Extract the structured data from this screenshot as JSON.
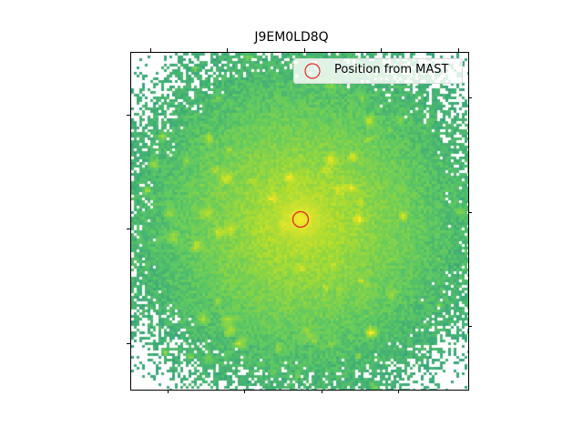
{
  "title": "J9EM0LD8Q",
  "legend": {
    "label": "Position from MAST",
    "marker_color": "#e8252a",
    "marker_icon": "circle-outline-icon"
  },
  "image": {
    "colormap": "viridis",
    "background": "#ffffff"
  }
}
